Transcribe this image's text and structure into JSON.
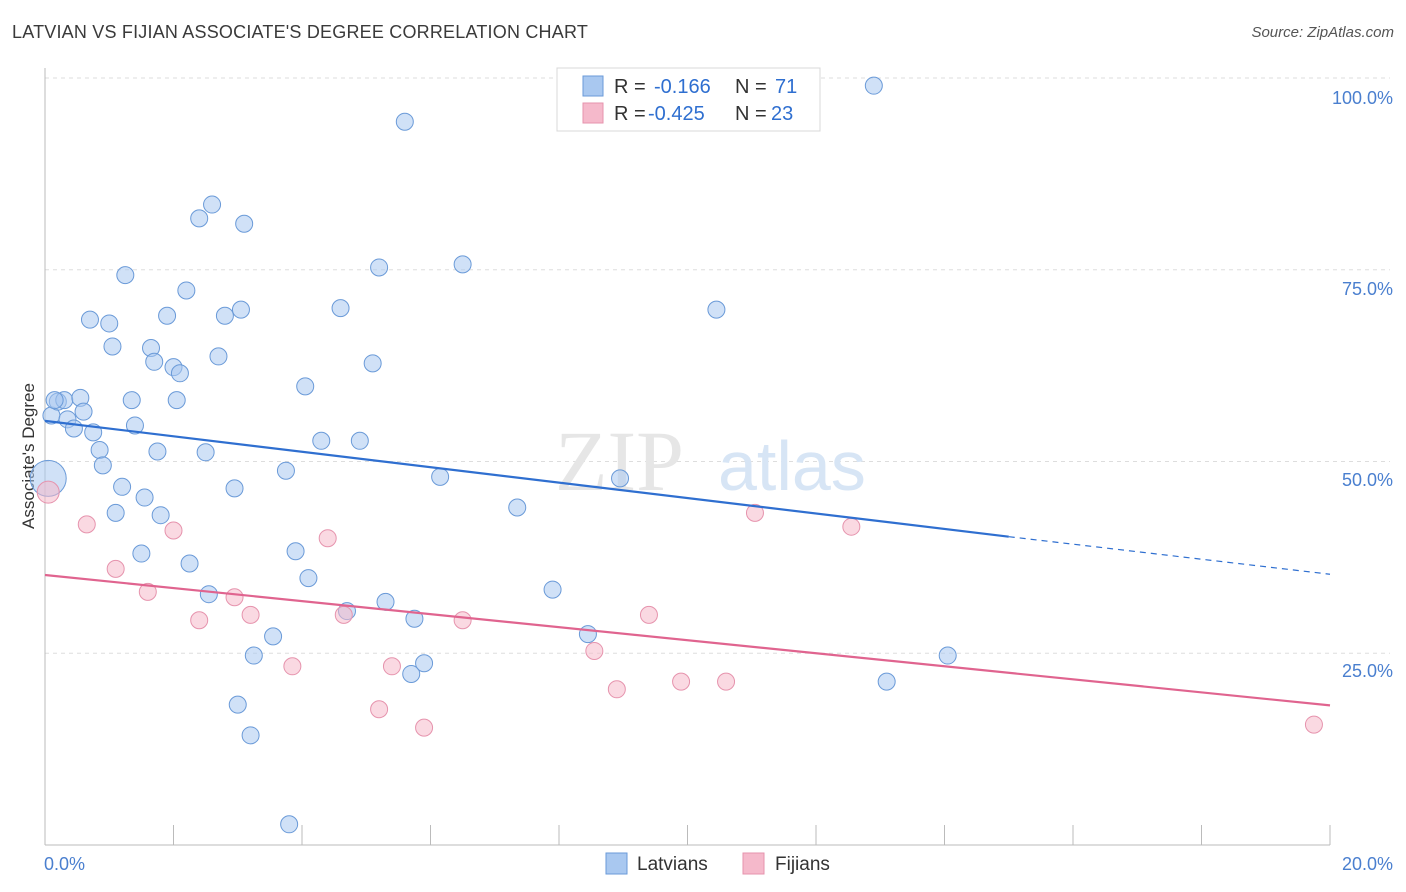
{
  "header": {
    "title": "LATVIAN VS FIJIAN ASSOCIATE'S DEGREE CORRELATION CHART",
    "source": "Source: ZipAtlas.com"
  },
  "watermark": {
    "zip": "ZIP",
    "atlas": "atlas"
  },
  "legend": {
    "rows": [
      {
        "r_label": "R =",
        "r_value": "-0.166",
        "n_label": "N =",
        "n_value": "71",
        "color": "#a9c8f0"
      },
      {
        "r_label": "R =",
        "r_value": "-0.425",
        "n_label": "N =",
        "n_value": "23",
        "color": "#f5b9cb"
      }
    ]
  },
  "colors": {
    "latvian_fill": "#a9c8f0",
    "latvian_stroke": "#6a9ad8",
    "latvian_line": "#2f6fd0",
    "fijian_fill": "#f5b9cb",
    "fijian_stroke": "#e693ad",
    "fijian_line": "#e0648f",
    "grid": "#dddddd",
    "tick_label": "#4a7fcf"
  },
  "chart_data": {
    "type": "scatter",
    "title": "LATVIAN VS FIJIAN ASSOCIATE'S DEGREE CORRELATION CHART",
    "xlabel": "",
    "ylabel": "Associate's Degree",
    "xlim": [
      0,
      20
    ],
    "ylim": [
      0,
      100
    ],
    "x_ticks": [
      "0.0%",
      "20.0%"
    ],
    "y_ticks": [
      "100.0%",
      "75.0%",
      "50.0%",
      "25.0%"
    ],
    "y_tick_values": [
      100,
      75,
      50,
      25
    ],
    "grid": "horizontal dashed",
    "legend_position": "bottom-center",
    "series": [
      {
        "name": "Latvians",
        "r": -0.166,
        "n": 71,
        "trend": {
          "x": [
            0,
            15
          ],
          "y": [
            55.3,
            40.2
          ],
          "dashed_to": [
            20,
            35.3
          ]
        },
        "points": [
          [
            0.05,
            47.8
          ],
          [
            0.1,
            56.0
          ],
          [
            0.2,
            57.8
          ],
          [
            0.3,
            58.0
          ],
          [
            0.35,
            55.5
          ],
          [
            0.45,
            54.3
          ],
          [
            0.55,
            58.3
          ],
          [
            0.6,
            56.5
          ],
          [
            0.7,
            68.5
          ],
          [
            0.75,
            53.8
          ],
          [
            0.85,
            51.5
          ],
          [
            0.9,
            49.5
          ],
          [
            1.0,
            68.0
          ],
          [
            1.05,
            65.0
          ],
          [
            1.1,
            43.3
          ],
          [
            1.2,
            46.7
          ],
          [
            1.25,
            74.3
          ],
          [
            1.35,
            58.0
          ],
          [
            1.4,
            54.7
          ],
          [
            1.5,
            38.0
          ],
          [
            1.55,
            45.3
          ],
          [
            1.65,
            64.8
          ],
          [
            1.7,
            63.0
          ],
          [
            1.75,
            51.3
          ],
          [
            1.8,
            43.0
          ],
          [
            1.9,
            69.0
          ],
          [
            2.0,
            62.3
          ],
          [
            2.05,
            58.0
          ],
          [
            2.1,
            61.5
          ],
          [
            2.2,
            72.3
          ],
          [
            2.25,
            36.7
          ],
          [
            2.4,
            81.7
          ],
          [
            2.5,
            51.2
          ],
          [
            2.55,
            32.7
          ],
          [
            2.6,
            83.5
          ],
          [
            2.7,
            63.7
          ],
          [
            2.8,
            69.0
          ],
          [
            2.95,
            46.5
          ],
          [
            3.0,
            18.3
          ],
          [
            3.05,
            69.8
          ],
          [
            3.1,
            81.0
          ],
          [
            3.2,
            14.3
          ],
          [
            3.25,
            24.7
          ],
          [
            3.55,
            27.2
          ],
          [
            3.75,
            48.8
          ],
          [
            3.8,
            2.7
          ],
          [
            3.9,
            38.3
          ],
          [
            4.05,
            59.8
          ],
          [
            4.1,
            34.8
          ],
          [
            4.3,
            52.7
          ],
          [
            4.6,
            70.0
          ],
          [
            4.7,
            30.5
          ],
          [
            4.9,
            52.7
          ],
          [
            5.1,
            62.8
          ],
          [
            5.2,
            75.3
          ],
          [
            5.3,
            31.7
          ],
          [
            5.6,
            94.3
          ],
          [
            5.7,
            22.3
          ],
          [
            5.75,
            29.5
          ],
          [
            5.9,
            23.7
          ],
          [
            6.15,
            48.0
          ],
          [
            6.5,
            75.7
          ],
          [
            7.35,
            44.0
          ],
          [
            7.9,
            33.3
          ],
          [
            8.45,
            27.5
          ],
          [
            8.95,
            47.8
          ],
          [
            10.45,
            69.8
          ],
          [
            12.9,
            99.0
          ],
          [
            13.1,
            21.3
          ],
          [
            14.05,
            24.7
          ],
          [
            0.15,
            58.0
          ]
        ]
      },
      {
        "name": "Fijians",
        "r": -0.425,
        "n": 23,
        "trend": {
          "x": [
            0,
            20
          ],
          "y": [
            35.2,
            18.2
          ]
        },
        "points": [
          [
            0.05,
            46.0
          ],
          [
            0.65,
            41.8
          ],
          [
            1.1,
            36.0
          ],
          [
            1.6,
            33.0
          ],
          [
            2.0,
            41.0
          ],
          [
            2.4,
            29.3
          ],
          [
            2.95,
            32.3
          ],
          [
            3.2,
            30.0
          ],
          [
            3.85,
            23.3
          ],
          [
            4.4,
            40.0
          ],
          [
            4.65,
            30.0
          ],
          [
            5.2,
            17.7
          ],
          [
            5.4,
            23.3
          ],
          [
            5.9,
            15.3
          ],
          [
            6.5,
            29.3
          ],
          [
            8.55,
            25.3
          ],
          [
            8.9,
            20.3
          ],
          [
            9.4,
            30.0
          ],
          [
            9.9,
            21.3
          ],
          [
            10.6,
            21.3
          ],
          [
            11.05,
            43.3
          ],
          [
            12.55,
            41.5
          ],
          [
            19.75,
            15.7
          ]
        ]
      }
    ]
  },
  "bottom_legend": {
    "items": [
      {
        "label": "Latvians"
      },
      {
        "label": "Fijians"
      }
    ]
  }
}
